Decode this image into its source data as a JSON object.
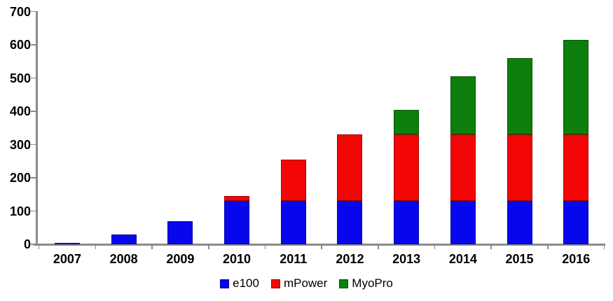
{
  "chart_data": {
    "type": "bar",
    "subtype": "stacked",
    "title": "",
    "xlabel": "",
    "ylabel": "",
    "grid": false,
    "background": "#ffffff",
    "axis_color": "#8a8a8a",
    "categories": [
      "2007",
      "2008",
      "2009",
      "2010",
      "2011",
      "2012",
      "2013",
      "2014",
      "2015",
      "2016"
    ],
    "series": [
      {
        "name": "e100",
        "color": "#0707ee",
        "values": [
          5,
          30,
          70,
          130,
          130,
          130,
          130,
          130,
          130,
          130
        ]
      },
      {
        "name": "mPower",
        "color": "#f20606",
        "values": [
          0,
          0,
          0,
          15,
          125,
          200,
          200,
          200,
          200,
          200
        ]
      },
      {
        "name": "MyoPro",
        "color": "#0b7e0b",
        "values": [
          0,
          0,
          0,
          0,
          0,
          0,
          75,
          175,
          230,
          285
        ]
      }
    ],
    "totals": [
      5,
      30,
      70,
      145,
      255,
      330,
      405,
      505,
      560,
      615
    ],
    "y_axis": {
      "min": 0,
      "max": 700,
      "step": 100,
      "tick_labels": [
        "0",
        "100",
        "200",
        "300",
        "400",
        "500",
        "600",
        "700"
      ]
    },
    "legend": {
      "position": "bottom",
      "entries": [
        "e100",
        "mPower",
        "MyoPro"
      ]
    }
  }
}
